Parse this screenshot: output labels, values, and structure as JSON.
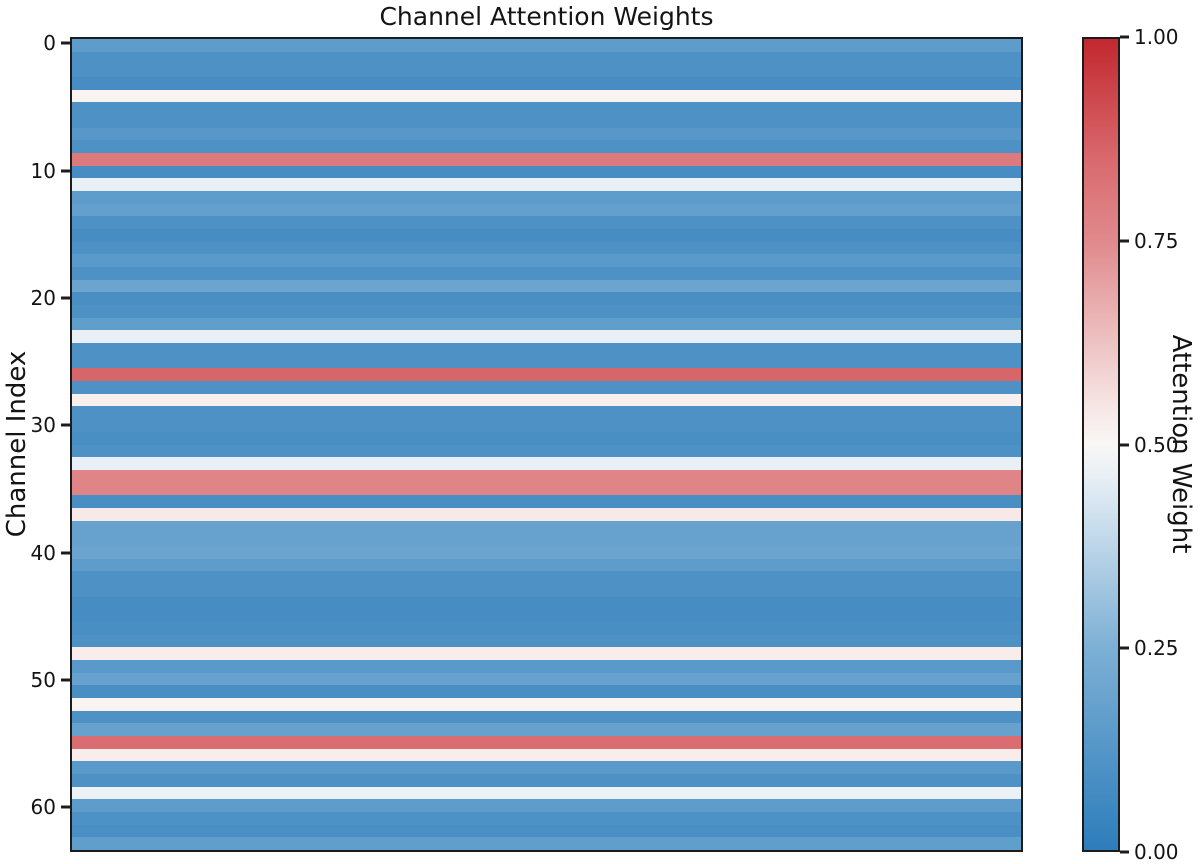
{
  "figure": {
    "background": "#ffffff",
    "text_color": "#141414",
    "spine_color": "#1c1c1c"
  },
  "chart_data": {
    "type": "heatmap",
    "title": "Channel Attention Weights",
    "ylabel": "Channel Index",
    "colorbar_label": "Attention Weight",
    "n_channels": 64,
    "y_ticks": [
      0,
      10,
      20,
      30,
      40,
      50,
      60
    ],
    "colorbar_ticks": [
      "1.00",
      "0.75",
      "0.50",
      "0.25",
      "0.00"
    ],
    "value_range": [
      0,
      1
    ],
    "legend_position": "right-colorbar",
    "grid": false,
    "colormap": {
      "style": "diverging blue-white-red (RdBu_r-like)",
      "stops": [
        [
          0.0,
          "#2d7dbb"
        ],
        [
          0.25,
          "#7db0d5"
        ],
        [
          0.46,
          "#e8eff5"
        ],
        [
          0.5,
          "#f9f7f5"
        ],
        [
          0.54,
          "#f7e9e8"
        ],
        [
          0.75,
          "#e08a8d"
        ],
        [
          0.85,
          "#d96a6e"
        ],
        [
          1.0,
          "#c2282f"
        ]
      ]
    },
    "weights": [
      0.15,
      0.1,
      0.1,
      0.08,
      0.51,
      0.1,
      0.1,
      0.13,
      0.1,
      0.8,
      0.08,
      0.46,
      0.15,
      0.17,
      0.1,
      0.08,
      0.1,
      0.14,
      0.1,
      0.19,
      0.09,
      0.1,
      0.16,
      0.46,
      0.1,
      0.1,
      0.86,
      0.1,
      0.52,
      0.1,
      0.1,
      0.09,
      0.1,
      0.46,
      0.77,
      0.77,
      0.09,
      0.54,
      0.18,
      0.18,
      0.19,
      0.15,
      0.1,
      0.1,
      0.08,
      0.08,
      0.09,
      0.1,
      0.53,
      0.14,
      0.18,
      0.09,
      0.51,
      0.1,
      0.18,
      0.84,
      0.53,
      0.14,
      0.1,
      0.47,
      0.15,
      0.1,
      0.09,
      0.16
    ]
  }
}
